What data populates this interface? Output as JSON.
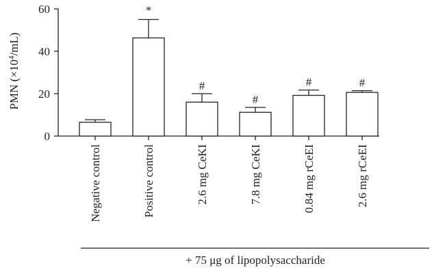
{
  "chart_data": {
    "type": "bar",
    "categories": [
      "Negative control",
      "Positive control",
      "2.6 mg CeKI",
      "7.8 mg CeKI",
      "0.84 mg rCeEI",
      "2.6 mg rCeEI"
    ],
    "values": [
      6.5,
      46.3,
      16,
      11.2,
      19.2,
      20.6
    ],
    "error_bars": [
      1.2,
      8.7,
      4,
      2.3,
      2.5,
      0.8
    ],
    "annotations": [
      "",
      "*",
      "#",
      "#",
      "#",
      "#"
    ],
    "ylabel": {
      "pre": "PMN (×10",
      "sup": "4",
      "post": "/mL)"
    },
    "yticks": [
      0,
      20,
      40,
      60
    ],
    "ylim": [
      0,
      60
    ],
    "footer": "+ 75 μg of lipopolysaccharide",
    "grid": false,
    "colors": {
      "bar_fill": "#ffffff",
      "stroke": "#231f20"
    }
  }
}
